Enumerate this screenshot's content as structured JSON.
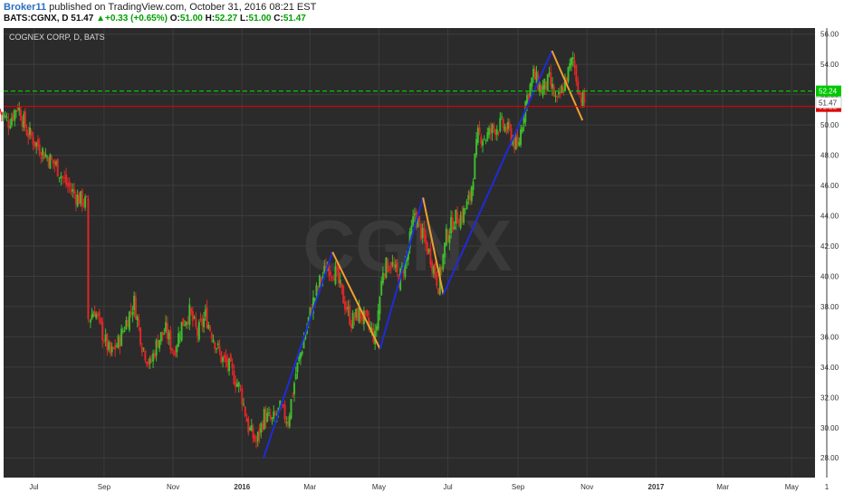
{
  "header": {
    "author": "Broker11",
    "published_text": "published on TradingView.com, October 31, 2016 08:21 EST",
    "symbol": "BATS:CGNX, D",
    "last": "51.47",
    "change_arrow": "▲",
    "change": "+0.33 (+0.65%)",
    "open_label": "O:",
    "open": "51.00",
    "high_label": "H:",
    "high": "52.27",
    "low_label": "L:",
    "low": "51.00",
    "close_label": "C:",
    "close": "51.47"
  },
  "chart_data": {
    "type": "candlestick",
    "title": "COGNEX CORP, D, BATS",
    "watermark": "CGNX",
    "ylim": [
      26.7,
      56.4
    ],
    "y_ticks": [
      28,
      30,
      32,
      34,
      36,
      38,
      40,
      42,
      44,
      46,
      48,
      50,
      52,
      54,
      56
    ],
    "x_ticks": [
      "Jul",
      "Sep",
      "Nov",
      "2016",
      "Mar",
      "May",
      "Jul",
      "Sep",
      "Nov",
      "2017",
      "Mar",
      "May",
      "1"
    ],
    "x_range_months": [
      "2015-06",
      "2017-06"
    ],
    "candles_approx": [
      [
        "2015-06-01",
        51.0
      ],
      [
        "2015-06-10",
        50.2
      ],
      [
        "2015-06-18",
        51.3
      ],
      [
        "2015-06-26",
        49.6
      ],
      [
        "2015-07-06",
        48.6
      ],
      [
        "2015-07-14",
        47.9
      ],
      [
        "2015-07-22",
        47.3
      ],
      [
        "2015-07-31",
        46.1
      ],
      [
        "2015-08-10",
        45.2
      ],
      [
        "2015-08-18",
        44.8
      ],
      [
        "2015-08-20",
        37.2
      ],
      [
        "2015-08-25",
        37.8
      ],
      [
        "2015-09-01",
        36.2
      ],
      [
        "2015-09-08",
        34.8
      ],
      [
        "2015-09-15",
        35.6
      ],
      [
        "2015-09-22",
        37.0
      ],
      [
        "2015-09-29",
        38.3
      ],
      [
        "2015-10-06",
        35.5
      ],
      [
        "2015-10-13",
        34.1
      ],
      [
        "2015-10-20",
        35.8
      ],
      [
        "2015-10-27",
        36.4
      ],
      [
        "2015-11-03",
        35.0
      ],
      [
        "2015-11-10",
        36.8
      ],
      [
        "2015-11-17",
        37.6
      ],
      [
        "2015-11-24",
        36.2
      ],
      [
        "2015-12-01",
        37.4
      ],
      [
        "2015-12-08",
        36.0
      ],
      [
        "2015-12-15",
        34.6
      ],
      [
        "2015-12-22",
        34.0
      ],
      [
        "2016-01-01",
        32.5
      ],
      [
        "2016-01-08",
        30.0
      ],
      [
        "2016-01-15",
        29.0
      ],
      [
        "2016-01-22",
        30.8
      ],
      [
        "2016-01-29",
        30.4
      ],
      [
        "2016-02-05",
        31.2
      ],
      [
        "2016-02-12",
        30.5
      ],
      [
        "2016-02-19",
        33.6
      ],
      [
        "2016-02-26",
        35.8
      ],
      [
        "2016-03-04",
        38.0
      ],
      [
        "2016-03-11",
        39.6
      ],
      [
        "2016-03-18",
        40.7
      ],
      [
        "2016-03-25",
        40.2
      ],
      [
        "2016-04-01",
        38.5
      ],
      [
        "2016-04-08",
        37.0
      ],
      [
        "2016-04-15",
        37.6
      ],
      [
        "2016-04-22",
        36.9
      ],
      [
        "2016-04-29",
        35.9
      ],
      [
        "2016-05-06",
        40.5
      ],
      [
        "2016-05-13",
        40.9
      ],
      [
        "2016-05-20",
        39.8
      ],
      [
        "2016-05-27",
        41.2
      ],
      [
        "2016-06-03",
        44.2
      ],
      [
        "2016-06-10",
        42.6
      ],
      [
        "2016-06-17",
        41.3
      ],
      [
        "2016-06-24",
        39.4
      ],
      [
        "2016-07-01",
        42.6
      ],
      [
        "2016-07-08",
        43.8
      ],
      [
        "2016-07-15",
        44.0
      ],
      [
        "2016-07-22",
        45.2
      ],
      [
        "2016-07-29",
        49.3
      ],
      [
        "2016-08-05",
        49.2
      ],
      [
        "2016-08-12",
        49.8
      ],
      [
        "2016-08-19",
        50.0
      ],
      [
        "2016-08-26",
        49.5
      ],
      [
        "2016-09-02",
        48.4
      ],
      [
        "2016-09-09",
        51.5
      ],
      [
        "2016-09-16",
        53.3
      ],
      [
        "2016-09-23",
        52.3
      ],
      [
        "2016-09-30",
        52.9
      ],
      [
        "2016-10-07",
        51.4
      ],
      [
        "2016-10-14",
        52.8
      ],
      [
        "2016-10-21",
        54.4
      ],
      [
        "2016-10-27",
        52.0
      ],
      [
        "2016-10-31",
        51.47
      ]
    ],
    "zigzag": [
      {
        "color": "blue",
        "points": [
          [
            "2016-01-20",
            28.0
          ],
          [
            "2016-03-21",
            41.6
          ]
        ]
      },
      {
        "color": "orange",
        "points": [
          [
            "2016-03-21",
            41.6
          ],
          [
            "2016-05-02",
            35.2
          ]
        ]
      },
      {
        "color": "blue",
        "points": [
          [
            "2016-05-02",
            35.2
          ],
          [
            "2016-06-09",
            45.2
          ]
        ]
      },
      {
        "color": "orange",
        "points": [
          [
            "2016-06-09",
            45.2
          ],
          [
            "2016-06-27",
            38.8
          ]
        ]
      },
      {
        "color": "blue",
        "points": [
          [
            "2016-06-27",
            38.8
          ],
          [
            "2016-10-01",
            54.9
          ]
        ]
      },
      {
        "color": "orange",
        "points": [
          [
            "2016-10-01",
            54.9
          ],
          [
            "2016-10-28",
            50.3
          ]
        ]
      }
    ],
    "hlines": [
      {
        "value": 52.24,
        "color": "#00c800",
        "style": "dashed",
        "label": "52.24"
      },
      {
        "value": 51.22,
        "color": "#e00000",
        "style": "solid",
        "label": "51.22"
      }
    ],
    "last_label": {
      "value": 51.47,
      "label": "51.47"
    },
    "colors": {
      "background": "#2b2b2b",
      "grid": "#3c3c3c",
      "up": "#3dbb2c",
      "down": "#e02727",
      "zig_up": "#1f2bd8",
      "zig_down": "#f0a030",
      "axis_text": "#d8d8d8"
    }
  }
}
